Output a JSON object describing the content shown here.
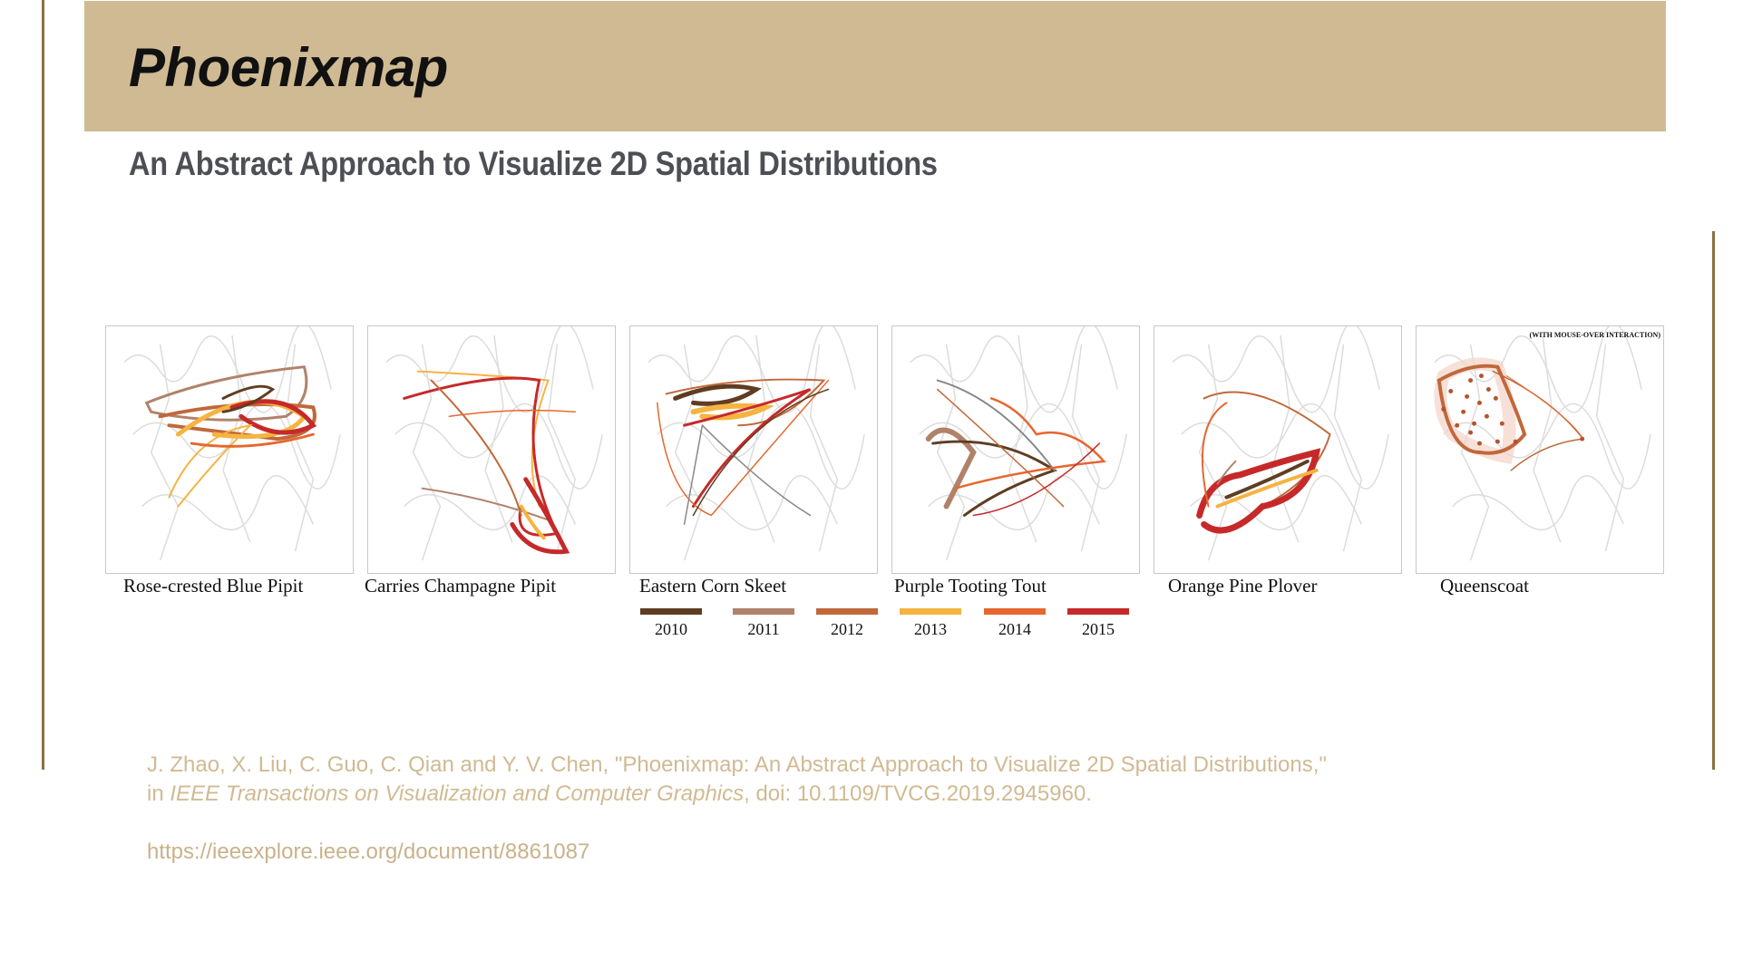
{
  "title": "Phoenixmap",
  "subtitle": "An Abstract Approach to Visualize 2D Spatial Distributions",
  "panels": [
    {
      "label": "Rose-crested Blue Pipit"
    },
    {
      "label": "Carries Champagne Pipit"
    },
    {
      "label": "Eastern Corn Skeet"
    },
    {
      "label": "Purple Tooting Tout"
    },
    {
      "label": "Orange Pine Plover"
    },
    {
      "label": "Queenscoat",
      "note": "(WITH MOUSE-OVER INTERACTION)"
    }
  ],
  "legend": [
    {
      "year": "2010",
      "color": "#5e3d22"
    },
    {
      "year": "2011",
      "color": "#b0826a"
    },
    {
      "year": "2012",
      "color": "#c0683a"
    },
    {
      "year": "2013",
      "color": "#f5b340"
    },
    {
      "year": "2014",
      "color": "#e5672e"
    },
    {
      "year": "2015",
      "color": "#c6292a"
    }
  ],
  "citation": {
    "line1": "J. Zhao, X. Liu, C. Guo, C. Qian and Y. V. Chen, \"Phoenixmap: An Abstract Approach to Visualize 2D Spatial Distributions,\"",
    "prefix2": "in ",
    "journal": "IEEE Transactions on Visualization and Computer Graphics",
    "suffix2": ", doi: 10.1109/TVCG.2019.2945960."
  },
  "link": "https://ieeexplore.ieee.org/document/8861087",
  "colors": {
    "header_band": "#d0ba93",
    "rule": "#8a7140",
    "citation": "#d0ba93"
  }
}
